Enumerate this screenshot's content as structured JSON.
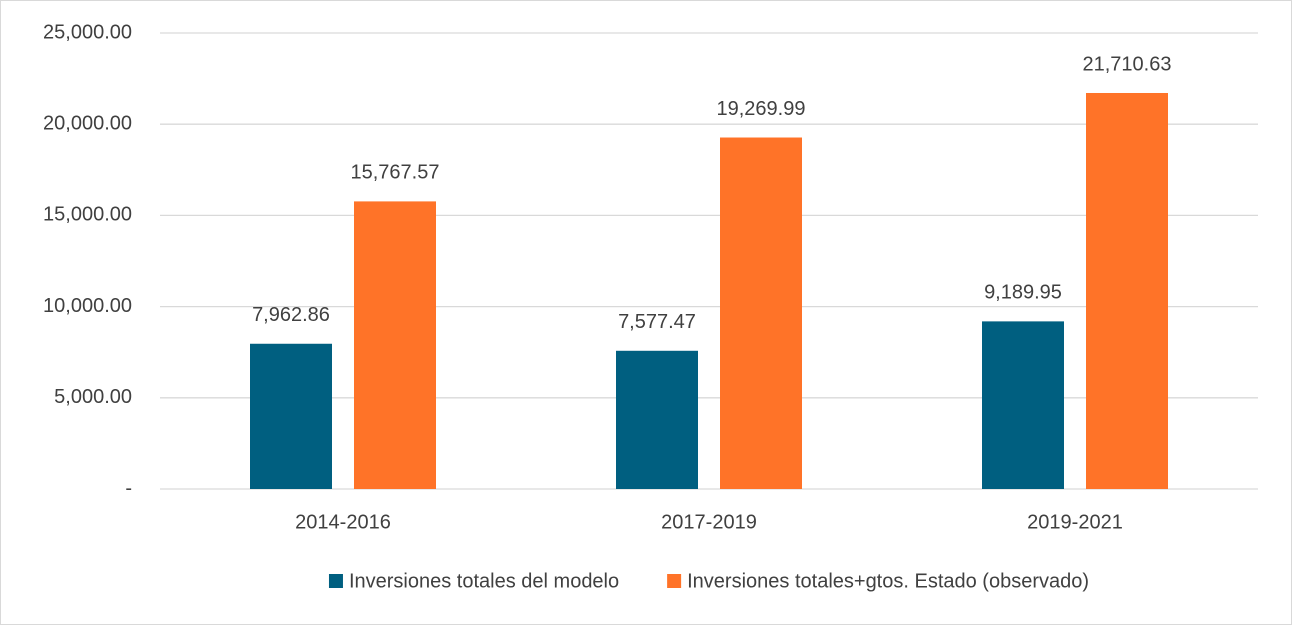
{
  "chart_data": {
    "type": "bar",
    "categories": [
      "2014-2016",
      "2017-2019",
      "2019-2021"
    ],
    "series": [
      {
        "name": "Inversiones totales del modelo",
        "color": "#005f80",
        "values": [
          7962.86,
          7577.47,
          9189.95
        ],
        "value_labels": [
          "7,962.86",
          "7,577.47",
          "9,189.95"
        ]
      },
      {
        "name": "Inversiones totales+gtos. Estado (observado)",
        "color": "#ff7328",
        "values": [
          15767.57,
          19269.99,
          21710.63
        ],
        "value_labels": [
          "15,767.57",
          "19,269.99",
          "21,710.63"
        ]
      }
    ],
    "ylim": [
      0,
      25000
    ],
    "yticks": [
      {
        "value": 0,
        "label": "-"
      },
      {
        "value": 5000,
        "label": "5,000.00"
      },
      {
        "value": 10000,
        "label": "10,000.00"
      },
      {
        "value": 15000,
        "label": "15,000.00"
      },
      {
        "value": 20000,
        "label": "20,000.00"
      },
      {
        "value": 25000,
        "label": "25,000.00"
      }
    ],
    "grid": true,
    "legend": "bottom"
  }
}
